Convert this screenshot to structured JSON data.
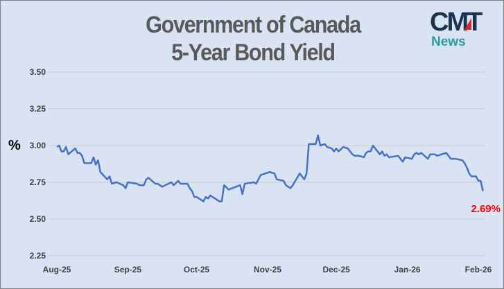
{
  "title_lines": [
    "Government of Canada",
    "5-Year Bond Yield"
  ],
  "logo": {
    "text": "CMT",
    "subtext": "News",
    "primary_color": "#1b3350",
    "accent_color": "#d7262d",
    "sub_color": "#2a9e98"
  },
  "chart_data": {
    "type": "line",
    "title": "Government of Canada 5-Year Bond Yield",
    "ylabel": "%",
    "xlabel": "",
    "ylim": [
      2.25,
      3.5
    ],
    "yticks": [
      "3.50",
      "3.25",
      "3.00",
      "2.75",
      "2.50",
      "2.25"
    ],
    "xticks": [
      {
        "label": "Aug-25",
        "date": "2025-08-01"
      },
      {
        "label": "Sep-25",
        "date": "2025-09-01"
      },
      {
        "label": "Oct-25",
        "date": "2025-10-01"
      },
      {
        "label": "Nov-25",
        "date": "2025-11-01"
      },
      {
        "label": "Dec-25",
        "date": "2025-12-01"
      },
      {
        "label": "Jan-26",
        "date": "2026-01-01"
      },
      {
        "label": "Feb-26",
        "date": "2026-02-01"
      }
    ],
    "xlim": [
      "2025-08-01",
      "2026-02-01"
    ],
    "grid": "horizontal",
    "line_color": "#4472c4",
    "annotation": {
      "text": "2.69%",
      "color": "#ff0000",
      "date": "2026-02-03",
      "value": 2.69
    },
    "series": [
      {
        "points": [
          [
            "2025-08-01",
            2.99
          ],
          [
            "2025-08-02",
            3.0
          ],
          [
            "2025-08-03",
            2.96
          ],
          [
            "2025-08-04",
            2.96
          ],
          [
            "2025-08-05",
            2.99
          ],
          [
            "2025-08-06",
            2.94
          ],
          [
            "2025-08-09",
            2.98
          ],
          [
            "2025-08-10",
            2.95
          ],
          [
            "2025-08-11",
            2.95
          ],
          [
            "2025-08-12",
            2.93
          ],
          [
            "2025-08-13",
            2.88
          ],
          [
            "2025-08-16",
            2.88
          ],
          [
            "2025-08-17",
            2.92
          ],
          [
            "2025-08-18",
            2.87
          ],
          [
            "2025-08-19",
            2.9
          ],
          [
            "2025-08-20",
            2.82
          ],
          [
            "2025-08-23",
            2.77
          ],
          [
            "2025-08-24",
            2.79
          ],
          [
            "2025-08-25",
            2.74
          ],
          [
            "2025-08-27",
            2.75
          ],
          [
            "2025-08-30",
            2.73
          ],
          [
            "2025-08-31",
            2.71
          ],
          [
            "2025-09-01",
            2.75
          ],
          [
            "2025-09-05",
            2.74
          ],
          [
            "2025-09-06",
            2.73
          ],
          [
            "2025-09-08",
            2.73
          ],
          [
            "2025-09-09",
            2.77
          ],
          [
            "2025-09-10",
            2.78
          ],
          [
            "2025-09-13",
            2.74
          ],
          [
            "2025-09-14",
            2.74
          ],
          [
            "2025-09-16",
            2.72
          ],
          [
            "2025-09-20",
            2.75
          ],
          [
            "2025-09-21",
            2.73
          ],
          [
            "2025-09-23",
            2.76
          ],
          [
            "2025-09-24",
            2.74
          ],
          [
            "2025-09-27",
            2.74
          ],
          [
            "2025-09-28",
            2.71
          ],
          [
            "2025-09-29",
            2.69
          ],
          [
            "2025-09-30",
            2.65
          ],
          [
            "2025-10-01",
            2.65
          ],
          [
            "2025-10-04",
            2.62
          ],
          [
            "2025-10-05",
            2.65
          ],
          [
            "2025-10-06",
            2.64
          ],
          [
            "2025-10-07",
            2.66
          ],
          [
            "2025-10-11",
            2.62
          ],
          [
            "2025-10-12",
            2.62
          ],
          [
            "2025-10-13",
            2.73
          ],
          [
            "2025-10-15",
            2.7
          ],
          [
            "2025-10-20",
            2.73
          ],
          [
            "2025-10-21",
            2.67
          ],
          [
            "2025-10-22",
            2.74
          ],
          [
            "2025-10-26",
            2.75
          ],
          [
            "2025-10-27",
            2.74
          ],
          [
            "2025-10-29",
            2.8
          ],
          [
            "2025-10-31",
            2.81
          ],
          [
            "2025-11-02",
            2.82
          ],
          [
            "2025-11-04",
            2.81
          ],
          [
            "2025-11-05",
            2.77
          ],
          [
            "2025-11-08",
            2.76
          ],
          [
            "2025-11-09",
            2.73
          ],
          [
            "2025-11-11",
            2.71
          ],
          [
            "2025-11-12",
            2.73
          ],
          [
            "2025-11-15",
            2.81
          ],
          [
            "2025-11-17",
            2.77
          ],
          [
            "2025-11-18",
            2.81
          ],
          [
            "2025-11-19",
            3.01
          ],
          [
            "2025-11-22",
            3.01
          ],
          [
            "2025-11-23",
            3.07
          ],
          [
            "2025-11-24",
            3.0
          ],
          [
            "2025-11-26",
            3.01
          ],
          [
            "2025-11-27",
            2.99
          ],
          [
            "2025-11-29",
            2.98
          ],
          [
            "2025-11-30",
            2.96
          ],
          [
            "2025-12-01",
            2.98
          ],
          [
            "2025-12-02",
            2.96
          ],
          [
            "2025-12-04",
            2.99
          ],
          [
            "2025-12-06",
            2.98
          ],
          [
            "2025-12-08",
            2.94
          ],
          [
            "2025-12-09",
            2.93
          ],
          [
            "2025-12-11",
            2.93
          ],
          [
            "2025-12-13",
            2.92
          ],
          [
            "2025-12-14",
            2.95
          ],
          [
            "2025-12-15",
            2.96
          ],
          [
            "2025-12-16",
            2.96
          ],
          [
            "2025-12-17",
            3.0
          ],
          [
            "2025-12-20",
            2.94
          ],
          [
            "2025-12-21",
            2.96
          ],
          [
            "2025-12-22",
            2.93
          ],
          [
            "2025-12-23",
            2.94
          ],
          [
            "2025-12-24",
            2.92
          ],
          [
            "2025-12-28",
            2.93
          ],
          [
            "2025-12-29",
            2.91
          ],
          [
            "2025-12-30",
            2.89
          ],
          [
            "2025-12-31",
            2.92
          ],
          [
            "2026-01-03",
            2.91
          ],
          [
            "2026-01-04",
            2.94
          ],
          [
            "2026-01-05",
            2.95
          ],
          [
            "2026-01-06",
            2.94
          ],
          [
            "2026-01-07",
            2.95
          ],
          [
            "2026-01-10",
            2.91
          ],
          [
            "2026-01-11",
            2.94
          ],
          [
            "2026-01-13",
            2.94
          ],
          [
            "2026-01-14",
            2.93
          ],
          [
            "2026-01-16",
            2.94
          ],
          [
            "2026-01-18",
            2.95
          ],
          [
            "2026-01-20",
            2.91
          ],
          [
            "2026-01-22",
            2.91
          ],
          [
            "2026-01-25",
            2.9
          ],
          [
            "2026-01-26",
            2.88
          ],
          [
            "2026-01-27",
            2.85
          ],
          [
            "2026-01-28",
            2.81
          ],
          [
            "2026-01-29",
            2.79
          ],
          [
            "2026-01-31",
            2.79
          ],
          [
            "2026-02-01",
            2.76
          ],
          [
            "2026-02-02",
            2.76
          ],
          [
            "2026-02-03",
            2.69
          ]
        ]
      }
    ]
  }
}
